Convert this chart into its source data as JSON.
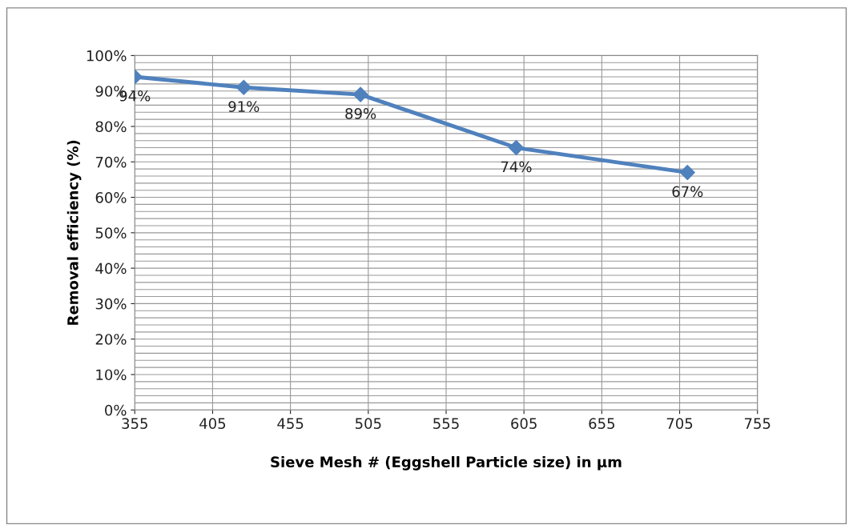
{
  "chart_data": {
    "type": "line",
    "xlabel": "Sieve Mesh # (Eggshell Particle size) in µm",
    "ylabel": "Removal efficiency (%)",
    "x": [
      355,
      425,
      500,
      600,
      710
    ],
    "series": [
      {
        "color": "#4f81bd",
        "values": [
          94,
          91,
          89,
          74,
          67
        ],
        "value_labels": [
          "94%",
          "91%",
          "89%",
          "74%",
          "67%"
        ]
      }
    ],
    "xlim": [
      355,
      755
    ],
    "xticks": [
      355,
      405,
      455,
      505,
      555,
      605,
      655,
      705,
      755
    ],
    "ylim": [
      0,
      100
    ],
    "yticks": [
      {
        "value": 0,
        "label": "0%"
      },
      {
        "value": 2,
        "label": null
      },
      {
        "value": 4,
        "label": null
      },
      {
        "value": 6,
        "label": null
      },
      {
        "value": 8,
        "label": null
      },
      {
        "value": 10,
        "label": "10%"
      },
      {
        "value": 12,
        "label": null
      },
      {
        "value": 14,
        "label": null
      },
      {
        "value": 16,
        "label": null
      },
      {
        "value": 18,
        "label": null
      },
      {
        "value": 20,
        "label": "20%"
      },
      {
        "value": 22,
        "label": null
      },
      {
        "value": 24,
        "label": null
      },
      {
        "value": 26,
        "label": null
      },
      {
        "value": 28,
        "label": null
      },
      {
        "value": 30,
        "label": "30%"
      },
      {
        "value": 32,
        "label": null
      },
      {
        "value": 34,
        "label": null
      },
      {
        "value": 36,
        "label": null
      },
      {
        "value": 38,
        "label": null
      },
      {
        "value": 40,
        "label": "40%"
      },
      {
        "value": 42,
        "label": null
      },
      {
        "value": 44,
        "label": null
      },
      {
        "value": 46,
        "label": null
      },
      {
        "value": 48,
        "label": null
      },
      {
        "value": 50,
        "label": "50%"
      },
      {
        "value": 52,
        "label": null
      },
      {
        "value": 54,
        "label": null
      },
      {
        "value": 56,
        "label": null
      },
      {
        "value": 58,
        "label": null
      },
      {
        "value": 60,
        "label": "60%"
      },
      {
        "value": 62,
        "label": null
      },
      {
        "value": 64,
        "label": null
      },
      {
        "value": 66,
        "label": null
      },
      {
        "value": 68,
        "label": null
      },
      {
        "value": 70,
        "label": "70%"
      },
      {
        "value": 72,
        "label": null
      },
      {
        "value": 74,
        "label": null
      },
      {
        "value": 76,
        "label": null
      },
      {
        "value": 78,
        "label": null
      },
      {
        "value": 80,
        "label": "80%"
      },
      {
        "value": 82,
        "label": null
      },
      {
        "value": 84,
        "label": null
      },
      {
        "value": 86,
        "label": null
      },
      {
        "value": 88,
        "label": null
      },
      {
        "value": 90,
        "label": "90%"
      },
      {
        "value": 92,
        "label": null
      },
      {
        "value": 94,
        "label": null
      },
      {
        "value": 96,
        "label": null
      },
      {
        "value": 98,
        "label": null
      },
      {
        "value": 100,
        "label": "100%"
      }
    ],
    "grid": true,
    "marker": "diamond",
    "line_style": "solid",
    "legend": false
  }
}
